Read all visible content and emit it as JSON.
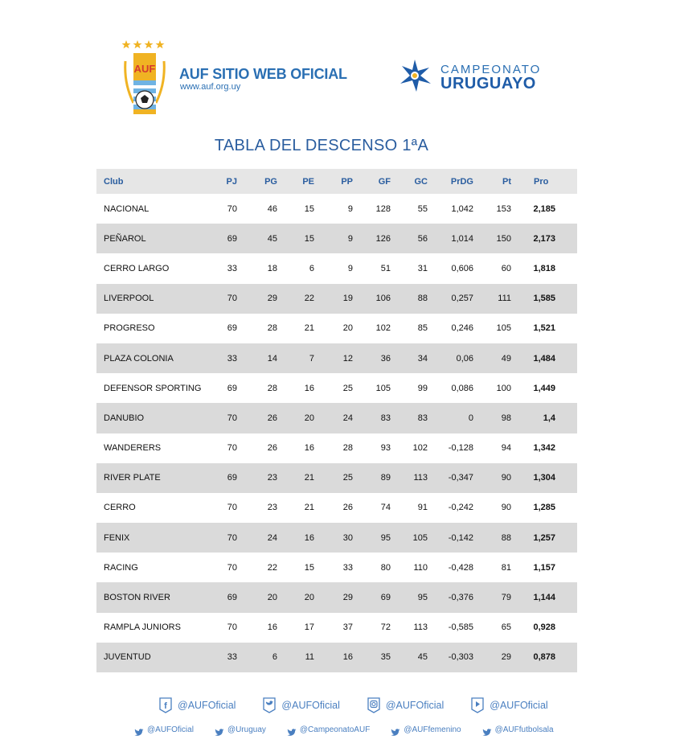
{
  "header": {
    "auf_title": "AUF SITIO WEB OFICIAL",
    "auf_url": "www.auf.org.uy",
    "auf_logo_text": "AUF",
    "campeonato_top": "CAMPEONATO",
    "campeonato_bottom": "URUGUAYO"
  },
  "title": "TABLA DEL DESCENSO 1ªA",
  "table": {
    "headers": {
      "club": "Club",
      "pj": "PJ",
      "pg": "PG",
      "pe": "PE",
      "pp": "PP",
      "gf": "GF",
      "gc": "GC",
      "prdg": "PrDG",
      "pt": "Pt",
      "pro": "Pro"
    },
    "rows": [
      {
        "club": "NACIONAL",
        "pj": "70",
        "pg": "46",
        "pe": "15",
        "pp": "9",
        "gf": "128",
        "gc": "55",
        "prdg": "1,042",
        "pt": "153",
        "pro": "2,185"
      },
      {
        "club": "PEÑAROL",
        "pj": "69",
        "pg": "45",
        "pe": "15",
        "pp": "9",
        "gf": "126",
        "gc": "56",
        "prdg": "1,014",
        "pt": "150",
        "pro": "2,173"
      },
      {
        "club": "CERRO LARGO",
        "pj": "33",
        "pg": "18",
        "pe": "6",
        "pp": "9",
        "gf": "51",
        "gc": "31",
        "prdg": "0,606",
        "pt": "60",
        "pro": "1,818"
      },
      {
        "club": "LIVERPOOL",
        "pj": "70",
        "pg": "29",
        "pe": "22",
        "pp": "19",
        "gf": "106",
        "gc": "88",
        "prdg": "0,257",
        "pt": "111",
        "pro": "1,585"
      },
      {
        "club": "PROGRESO",
        "pj": "69",
        "pg": "28",
        "pe": "21",
        "pp": "20",
        "gf": "102",
        "gc": "85",
        "prdg": "0,246",
        "pt": "105",
        "pro": "1,521"
      },
      {
        "club": "PLAZA COLONIA",
        "pj": "33",
        "pg": "14",
        "pe": "7",
        "pp": "12",
        "gf": "36",
        "gc": "34",
        "prdg": "0,06",
        "pt": "49",
        "pro": "1,484"
      },
      {
        "club": "DEFENSOR SPORTING",
        "pj": "69",
        "pg": "28",
        "pe": "16",
        "pp": "25",
        "gf": "105",
        "gc": "99",
        "prdg": "0,086",
        "pt": "100",
        "pro": "1,449"
      },
      {
        "club": "DANUBIO",
        "pj": "70",
        "pg": "26",
        "pe": "20",
        "pp": "24",
        "gf": "83",
        "gc": "83",
        "prdg": "0",
        "pt": "98",
        "pro": "1,4"
      },
      {
        "club": "WANDERERS",
        "pj": "70",
        "pg": "26",
        "pe": "16",
        "pp": "28",
        "gf": "93",
        "gc": "102",
        "prdg": "-0,128",
        "pt": "94",
        "pro": "1,342"
      },
      {
        "club": "RIVER PLATE",
        "pj": "69",
        "pg": "23",
        "pe": "21",
        "pp": "25",
        "gf": "89",
        "gc": "113",
        "prdg": "-0,347",
        "pt": "90",
        "pro": "1,304"
      },
      {
        "club": "CERRO",
        "pj": "70",
        "pg": "23",
        "pe": "21",
        "pp": "26",
        "gf": "74",
        "gc": "91",
        "prdg": "-0,242",
        "pt": "90",
        "pro": "1,285"
      },
      {
        "club": "FENIX",
        "pj": "70",
        "pg": "24",
        "pe": "16",
        "pp": "30",
        "gf": "95",
        "gc": "105",
        "prdg": "-0,142",
        "pt": "88",
        "pro": "1,257"
      },
      {
        "club": "RACING",
        "pj": "70",
        "pg": "22",
        "pe": "15",
        "pp": "33",
        "gf": "80",
        "gc": "110",
        "prdg": "-0,428",
        "pt": "81",
        "pro": "1,157"
      },
      {
        "club": "BOSTON RIVER",
        "pj": "69",
        "pg": "20",
        "pe": "20",
        "pp": "29",
        "gf": "69",
        "gc": "95",
        "prdg": "-0,376",
        "pt": "79",
        "pro": "1,144"
      },
      {
        "club": "RAMPLA JUNIORS",
        "pj": "70",
        "pg": "16",
        "pe": "17",
        "pp": "37",
        "gf": "72",
        "gc": "113",
        "prdg": "-0,585",
        "pt": "65",
        "pro": "0,928"
      },
      {
        "club": "JUVENTUD",
        "pj": "33",
        "pg": "6",
        "pe": "11",
        "pp": "16",
        "gf": "35",
        "gc": "45",
        "prdg": "-0,303",
        "pt": "29",
        "pro": "0,878"
      }
    ]
  },
  "footer": {
    "social_main": [
      {
        "icon": "facebook-icon",
        "label": "@AUFOficial"
      },
      {
        "icon": "twitter-icon",
        "label": "@AUFOficial"
      },
      {
        "icon": "instagram-icon",
        "label": "@AUFOficial"
      },
      {
        "icon": "youtube-icon",
        "label": "@AUFOficial"
      }
    ],
    "social_twitter": [
      {
        "icon": "twitter-icon",
        "label": "@AUFOficial"
      },
      {
        "icon": "twitter-icon",
        "label": "@Uruguay"
      },
      {
        "icon": "twitter-icon",
        "label": "@CampeonatoAUF"
      },
      {
        "icon": "twitter-icon",
        "label": "@AUFfemenino"
      },
      {
        "icon": "twitter-icon",
        "label": "@AUFfutbolsala"
      }
    ]
  },
  "colors": {
    "brand_blue": "#2a6fb3",
    "title_blue": "#2a5d9f",
    "row_stripe": "#dadada",
    "gold": "#f0b323"
  }
}
